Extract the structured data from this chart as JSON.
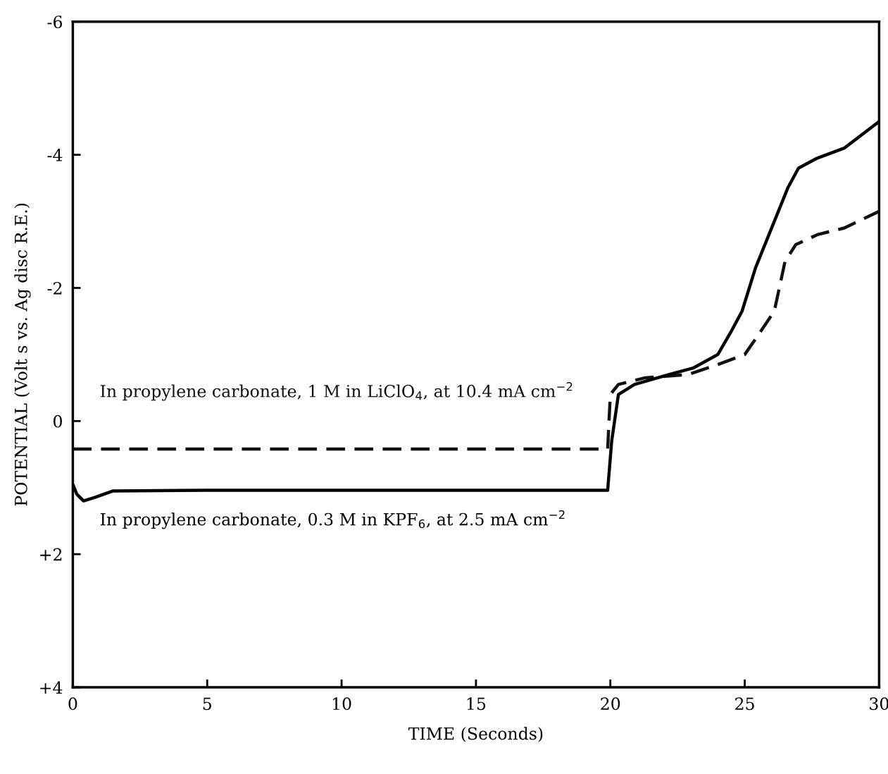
{
  "chart_data": {
    "type": "line",
    "xlabel": "TIME (Seconds)",
    "ylabel": "POTENTIAL (Volt s vs. Ag disc R.E.)",
    "xlim": [
      0,
      30
    ],
    "ylim": [
      4,
      -6
    ],
    "xticks": [
      0,
      5,
      10,
      15,
      20,
      25,
      30
    ],
    "yticks": [
      {
        "value": -6,
        "label": "-6"
      },
      {
        "value": -4,
        "label": "-4"
      },
      {
        "value": -2,
        "label": "-2"
      },
      {
        "value": 0,
        "label": "0"
      },
      {
        "value": 2,
        "label": "+2"
      },
      {
        "value": 4,
        "label": "+4"
      }
    ],
    "grid": false,
    "legend": false,
    "series": [
      {
        "name": "In propylene carbonate, 1 M in LiClO$_{4}$, at 10.4 mA cm$^{−2}$",
        "color": "#111111",
        "line_style": "dashed",
        "x": [
          0,
          5,
          10,
          15,
          19.9,
          19.95,
          20.0,
          20.3,
          21.3,
          22.9,
          24.0,
          25.0,
          25.6,
          26.1,
          26.5,
          26.9,
          27.7,
          28.7,
          30
        ],
        "values": [
          0.42,
          0.42,
          0.42,
          0.42,
          0.42,
          0.0,
          -0.4,
          -0.55,
          -0.65,
          -0.7,
          -0.85,
          -1.0,
          -1.35,
          -1.65,
          -2.4,
          -2.65,
          -2.8,
          -2.9,
          -3.15
        ]
      },
      {
        "name": "In propylene carbonate, 0.3 M in KPF$_{6}$, at 2.5 mA cm$^{−2}$",
        "color": "#000000",
        "line_style": "solid",
        "x": [
          0,
          0.15,
          0.4,
          0.8,
          1.5,
          5,
          10,
          15,
          19.9,
          20.05,
          20.3,
          20.9,
          22.2,
          23.1,
          24.0,
          24.5,
          24.9,
          25.4,
          25.9,
          26.2,
          26.6,
          27.0,
          27.7,
          28.7,
          30
        ],
        "values": [
          0.95,
          1.1,
          1.2,
          1.15,
          1.05,
          1.04,
          1.04,
          1.04,
          1.04,
          0.3,
          -0.4,
          -0.55,
          -0.7,
          -0.8,
          -1.0,
          -1.35,
          -1.65,
          -2.3,
          -2.8,
          -3.1,
          -3.5,
          -3.8,
          -3.95,
          -4.1,
          -4.5
        ]
      }
    ]
  }
}
